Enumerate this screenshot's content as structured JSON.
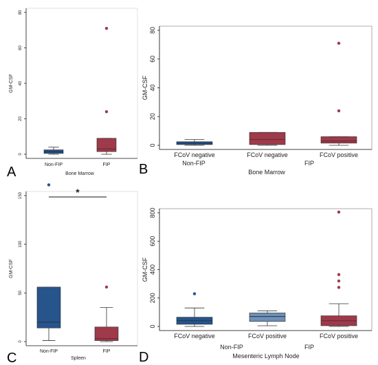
{
  "colors": {
    "nonfip": "#27548a",
    "fip": "#9e3a4a",
    "nonfip_light": "#6f8fb5",
    "frame": "#1a1a1a",
    "median_nonfip": "#1b3558",
    "median_fip": "#6a2431"
  },
  "chart_data": [
    {
      "panel": "A",
      "type": "box",
      "xlabel": "Bone Marrow",
      "ylabel": "GM-CSF",
      "ylim": [
        0,
        80
      ],
      "yticks": [
        0,
        20,
        40,
        60,
        80
      ],
      "categories": [
        "Non-FIP",
        "FIP"
      ],
      "boxes": [
        {
          "name": "Non-FIP",
          "group": "nonfip",
          "whisker_low": 0,
          "q1": 0.5,
          "median": 1.5,
          "q3": 2.5,
          "whisker_high": 4,
          "outliers": []
        },
        {
          "name": "FIP",
          "group": "fip",
          "whisker_low": 0,
          "q1": 1.5,
          "median": 3,
          "q3": 9,
          "whisker_high": 9,
          "outliers": [
            71,
            24
          ]
        }
      ]
    },
    {
      "panel": "B",
      "type": "box",
      "xlabel": "Bone Marrow",
      "ylabel": "GM-CSF",
      "ylim": [
        0,
        80
      ],
      "yticks": [
        0,
        20,
        40,
        60,
        80
      ],
      "categories": [
        "FCoV negative",
        "FCoV negative",
        "FCoV positive"
      ],
      "group_labels": [
        "Non-FIP",
        "FIP"
      ],
      "boxes": [
        {
          "name": "FCoV negative",
          "group": "nonfip",
          "whisker_low": 0,
          "q1": 0.5,
          "median": 1.5,
          "q3": 2.5,
          "whisker_high": 4,
          "outliers": []
        },
        {
          "name": "FCoV negative",
          "group": "fip",
          "whisker_low": 0,
          "q1": 0.5,
          "median": 4,
          "q3": 9,
          "whisker_high": 9,
          "outliers": []
        },
        {
          "name": "FCoV positive",
          "group": "fip",
          "whisker_low": 0,
          "q1": 1.5,
          "median": 3,
          "q3": 6,
          "whisker_high": 6,
          "outliers": [
            71,
            24
          ]
        }
      ]
    },
    {
      "panel": "C",
      "type": "box",
      "xlabel": "Spleen",
      "ylabel": "GM-CSF",
      "ylim": [
        0,
        150
      ],
      "yticks": [
        0,
        50,
        100,
        150
      ],
      "categories": [
        "Non-FIP",
        "FIP"
      ],
      "significance": "*",
      "boxes": [
        {
          "name": "Non-FIP",
          "group": "nonfip",
          "whisker_low": 1,
          "q1": 14,
          "median": 20,
          "q3": 56,
          "whisker_high": 56,
          "outliers": [
            161
          ]
        },
        {
          "name": "FIP",
          "group": "fip",
          "whisker_low": 0,
          "q1": 1,
          "median": 3,
          "q3": 15,
          "whisker_high": 35,
          "outliers": [
            56
          ]
        }
      ]
    },
    {
      "panel": "D",
      "type": "box",
      "xlabel": "Mesenteric Lymph Node",
      "ylabel": "GM-CSF",
      "ylim": [
        0,
        800
      ],
      "yticks": [
        0,
        200,
        400,
        600,
        800
      ],
      "categories": [
        "FCoV negative",
        "FCoV positive",
        "FCoV positive"
      ],
      "group_labels": [
        "Non-FIP",
        "FIP"
      ],
      "boxes": [
        {
          "name": "FCoV negative",
          "group": "nonfip",
          "whisker_low": 0,
          "q1": 15,
          "median": 40,
          "q3": 65,
          "whisker_high": 130,
          "outliers": [
            230
          ]
        },
        {
          "name": "FCoV positive",
          "group": "nonfip_light",
          "whisker_low": 5,
          "q1": 35,
          "median": 70,
          "q3": 95,
          "whisker_high": 110,
          "outliers": []
        },
        {
          "name": "FCoV positive",
          "group": "fip",
          "whisker_low": 0,
          "q1": 5,
          "median": 40,
          "q3": 75,
          "whisker_high": 160,
          "outliers": [
            805,
            365,
            320,
            275
          ]
        }
      ]
    }
  ]
}
